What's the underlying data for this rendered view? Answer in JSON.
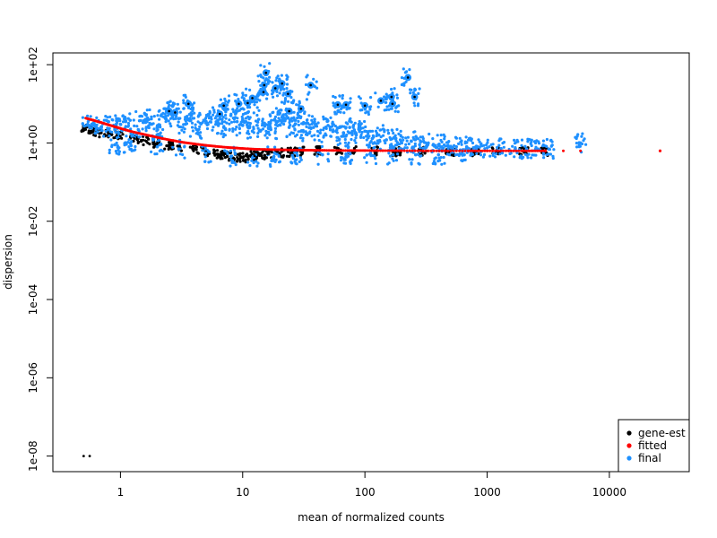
{
  "chart_data": {
    "type": "scatter",
    "title": "",
    "xlabel": "mean of normalized counts",
    "ylabel": "dispersion",
    "x_scale": "log10",
    "y_scale": "log10",
    "xlim": [
      0.28,
      45000
    ],
    "ylim": [
      4e-09,
      200
    ],
    "x_ticks": [
      {
        "value": 1,
        "label": "1"
      },
      {
        "value": 10,
        "label": "10"
      },
      {
        "value": 100,
        "label": "100"
      },
      {
        "value": 1000,
        "label": "1000"
      },
      {
        "value": 10000,
        "label": "10000"
      }
    ],
    "y_ticks": [
      {
        "value": 1e-08,
        "label": "1e-08"
      },
      {
        "value": 1e-06,
        "label": "1e-06"
      },
      {
        "value": 0.0001,
        "label": "1e-04"
      },
      {
        "value": 0.01,
        "label": "1e-02"
      },
      {
        "value": 1,
        "label": "1e+00"
      },
      {
        "value": 100,
        "label": "1e+02"
      }
    ],
    "legend": {
      "position": "bottom-right",
      "entries": [
        {
          "name": "gene-est",
          "color": "#000000"
        },
        {
          "name": "fitted",
          "color": "#ff0000"
        },
        {
          "name": "final",
          "color": "#1e90ff"
        }
      ]
    },
    "series": [
      {
        "name": "gene-est",
        "color": "#000000",
        "points": [
          [
            0.5,
            1e-08
          ],
          [
            0.56,
            1e-08
          ],
          [
            0.52,
            2.2
          ],
          [
            0.6,
            2.0
          ],
          [
            0.7,
            1.8
          ],
          [
            0.85,
            1.6
          ],
          [
            1.0,
            1.5
          ],
          [
            1.3,
            1.3
          ],
          [
            1.6,
            1.15
          ],
          [
            2.0,
            1.0
          ],
          [
            2.5,
            0.9
          ],
          [
            3.0,
            0.8
          ],
          [
            4.0,
            0.7
          ],
          [
            5.0,
            0.6
          ],
          [
            6.0,
            0.52
          ],
          [
            7.0,
            0.48
          ],
          [
            8.0,
            0.45
          ],
          [
            9.0,
            0.43
          ],
          [
            10.0,
            0.42
          ],
          [
            11.0,
            0.44
          ],
          [
            12.5,
            0.47
          ],
          [
            14.0,
            0.5
          ],
          [
            16.0,
            0.52
          ],
          [
            20.0,
            0.55
          ],
          [
            25.0,
            0.58
          ],
          [
            30.0,
            0.6
          ],
          [
            40.0,
            0.62
          ],
          [
            60.0,
            0.63
          ],
          [
            80.0,
            0.64
          ],
          [
            120.0,
            0.62
          ],
          [
            180.0,
            0.6
          ],
          [
            300.0,
            0.6
          ],
          [
            500.0,
            0.62
          ],
          [
            800.0,
            0.6
          ],
          [
            1200.0,
            0.62
          ],
          [
            2000.0,
            0.6
          ],
          [
            3000.0,
            0.6
          ]
        ]
      },
      {
        "name": "fitted",
        "color": "#ff0000",
        "points": [
          [
            0.52,
            4.3
          ],
          [
            0.6,
            3.8
          ],
          [
            0.7,
            3.3
          ],
          [
            0.8,
            2.9
          ],
          [
            0.9,
            2.6
          ],
          [
            1.0,
            2.35
          ],
          [
            1.2,
            2.0
          ],
          [
            1.5,
            1.7
          ],
          [
            1.8,
            1.5
          ],
          [
            2.2,
            1.3
          ],
          [
            2.7,
            1.15
          ],
          [
            3.3,
            1.03
          ],
          [
            4.0,
            0.95
          ],
          [
            5.0,
            0.87
          ],
          [
            6.0,
            0.82
          ],
          [
            7.5,
            0.77
          ],
          [
            9.0,
            0.74
          ],
          [
            11.0,
            0.71
          ],
          [
            13.0,
            0.69
          ],
          [
            16.0,
            0.68
          ],
          [
            20.0,
            0.67
          ],
          [
            25.0,
            0.66
          ],
          [
            32.0,
            0.655
          ],
          [
            40.0,
            0.65
          ],
          [
            55.0,
            0.645
          ],
          [
            75.0,
            0.64
          ],
          [
            100.0,
            0.64
          ],
          [
            140.0,
            0.635
          ],
          [
            200.0,
            0.635
          ],
          [
            300.0,
            0.63
          ],
          [
            450.0,
            0.63
          ],
          [
            700.0,
            0.63
          ],
          [
            1000.0,
            0.63
          ],
          [
            1500.0,
            0.63
          ],
          [
            2200.0,
            0.63
          ],
          [
            3000.0,
            0.63
          ],
          [
            4200.0,
            0.63
          ],
          [
            5800.0,
            0.63
          ],
          [
            26000.0,
            0.63
          ]
        ]
      },
      {
        "name": "final",
        "color": "#1e90ff",
        "points": [
          [
            0.55,
            2.8
          ],
          [
            0.6,
            3.2
          ],
          [
            0.7,
            2.6
          ],
          [
            0.8,
            3.5
          ],
          [
            0.9,
            2.4
          ],
          [
            1.0,
            3.0
          ],
          [
            1.2,
            3.8
          ],
          [
            1.4,
            2.2
          ],
          [
            1.6,
            4.0
          ],
          [
            1.8,
            3.0
          ],
          [
            2.0,
            2.5
          ],
          [
            2.3,
            4.5
          ],
          [
            2.6,
            5.5
          ],
          [
            3.0,
            4.2
          ],
          [
            3.4,
            3.0
          ],
          [
            3.8,
            5.0
          ],
          [
            4.2,
            2.2
          ],
          [
            4.8,
            3.8
          ],
          [
            5.5,
            4.5
          ],
          [
            6.2,
            3.0
          ],
          [
            7.0,
            2.5
          ],
          [
            8.0,
            5.0
          ],
          [
            9.0,
            3.5
          ],
          [
            10.0,
            2.8
          ],
          [
            11.0,
            6.0
          ],
          [
            12.0,
            2.0
          ],
          [
            13.5,
            4.0
          ],
          [
            15.0,
            3.0
          ],
          [
            17.0,
            2.2
          ],
          [
            19.0,
            3.5
          ],
          [
            21.0,
            4.5
          ],
          [
            24.0,
            2.5
          ],
          [
            27.0,
            3.8
          ],
          [
            30.0,
            2.0
          ],
          [
            34.0,
            3.2
          ],
          [
            38.0,
            2.5
          ],
          [
            43.0,
            1.8
          ],
          [
            50.0,
            2.8
          ],
          [
            58.0,
            2.0
          ],
          [
            66.0,
            1.5
          ],
          [
            75.0,
            2.5
          ],
          [
            85.0,
            1.6
          ],
          [
            100.0,
            2.0
          ],
          [
            115.0,
            1.3
          ],
          [
            130.0,
            1.6
          ],
          [
            150.0,
            1.2
          ],
          [
            175.0,
            1.4
          ],
          [
            200.0,
            1.0
          ],
          [
            240.0,
            1.1
          ],
          [
            280.0,
            0.9
          ],
          [
            330.0,
            1.0
          ],
          [
            400.0,
            0.9
          ],
          [
            480.0,
            0.85
          ],
          [
            560.0,
            0.8
          ],
          [
            680.0,
            0.8
          ],
          [
            800.0,
            0.78
          ],
          [
            1000.0,
            0.75
          ],
          [
            1300.0,
            0.72
          ],
          [
            1700.0,
            0.72
          ],
          [
            2100.0,
            0.7
          ],
          [
            2600.0,
            0.7
          ],
          [
            3200.0,
            0.7
          ],
          [
            5800.0,
            1.0
          ],
          [
            0.9,
            0.9
          ],
          [
            1.2,
            1.0
          ],
          [
            2.0,
            0.8
          ],
          [
            3.0,
            0.7
          ],
          [
            5.0,
            0.55
          ],
          [
            8.0,
            0.45
          ],
          [
            12.0,
            0.42
          ],
          [
            18.0,
            0.45
          ],
          [
            28.0,
            0.48
          ],
          [
            45.0,
            0.5
          ],
          [
            70.0,
            0.52
          ],
          [
            110.0,
            0.52
          ],
          [
            170.0,
            0.5
          ],
          [
            260.0,
            0.5
          ],
          [
            400.0,
            0.5
          ],
          [
            650.0,
            0.5
          ],
          [
            15.5,
            62.0
          ],
          [
            15.0,
            30.0
          ],
          [
            14.8,
            20.0
          ],
          [
            18.5,
            25.0
          ],
          [
            21.0,
            33.0
          ],
          [
            23.5,
            18.0
          ],
          [
            36.0,
            30.0
          ],
          [
            225.0,
            47.0
          ],
          [
            255.0,
            15.0
          ],
          [
            165.0,
            15.0
          ],
          [
            135.0,
            12.0
          ],
          [
            100.0,
            9.0
          ],
          [
            70.0,
            9.5
          ],
          [
            60.0,
            9.5
          ],
          [
            7.0,
            9.0
          ],
          [
            9.3,
            10.0
          ],
          [
            11.0,
            10.5
          ],
          [
            12.0,
            14.0
          ],
          [
            3.6,
            10.0
          ],
          [
            30.0,
            7.5
          ],
          [
            24.0,
            6.5
          ],
          [
            6.5,
            5.5
          ],
          [
            2.5,
            6.5
          ],
          [
            2.8,
            6.0
          ],
          [
            168.0,
            10.0
          ]
        ]
      }
    ],
    "outlier_rings": [
      [
        15.5,
        62.0
      ],
      [
        15.0,
        30.0
      ],
      [
        14.8,
        20.0
      ],
      [
        18.5,
        25.0
      ],
      [
        21.0,
        33.0
      ],
      [
        23.5,
        18.0
      ],
      [
        36.0,
        30.0
      ],
      [
        225.0,
        47.0
      ],
      [
        255.0,
        15.0
      ],
      [
        165.0,
        15.0
      ],
      [
        135.0,
        12.0
      ],
      [
        100.0,
        9.0
      ],
      [
        70.0,
        9.5
      ],
      [
        60.0,
        9.5
      ],
      [
        7.0,
        9.0
      ],
      [
        9.3,
        10.0
      ],
      [
        11.0,
        10.5
      ],
      [
        12.0,
        14.0
      ],
      [
        3.6,
        10.0
      ],
      [
        30.0,
        7.5
      ],
      [
        24.0,
        6.5
      ],
      [
        6.5,
        5.5
      ],
      [
        2.5,
        6.5
      ],
      [
        2.8,
        6.0
      ],
      [
        168.0,
        10.0
      ]
    ]
  }
}
